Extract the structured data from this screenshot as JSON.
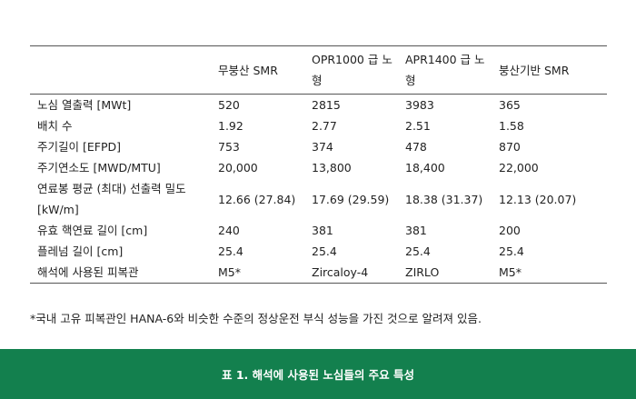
{
  "table": {
    "headers": [
      "",
      "무붕산 SMR",
      "OPR1000 급 노형",
      "APR1400 급 노형",
      "붕산기반 SMR"
    ],
    "rows": [
      [
        "노심 열출력 [MWt]",
        "520",
        "2815",
        "3983",
        "365"
      ],
      [
        "배치 수",
        "1.92",
        "2.77",
        "2.51",
        "1.58"
      ],
      [
        "주기길이 [EFPD]",
        "753",
        "374",
        "478",
        "870"
      ],
      [
        "주기연소도 [MWD/MTU]",
        "20,000",
        "13,800",
        "18,400",
        "22,000"
      ],
      [
        "연료봉 평균 (최대) 선출력 밀도 [kW/m]",
        "12.66 (27.84)",
        "17.69 (29.59)",
        "18.38 (31.37)",
        "12.13 (20.07)"
      ],
      [
        "유효 핵연료 길이 [cm]",
        "240",
        "381",
        "381",
        "200"
      ],
      [
        "플레넘 길이 [cm]",
        "25.4",
        "25.4",
        "25.4",
        "25.4"
      ],
      [
        "해석에 사용된 피복관",
        "M5*",
        "Zircaloy-4",
        "ZIRLO",
        "M5*"
      ]
    ]
  },
  "footnote": "*국내 고유 피복관인 HANA-6와 비슷한 수준의 정상운전 부식 성능을 가진 것으로 알려져 있음.",
  "caption": "표 1. 해석에 사용된 노심들의 주요 특성",
  "colors": {
    "caption_bg": "#13804e",
    "caption_text": "#ffffff",
    "rule": "#555555",
    "text": "#222222"
  }
}
